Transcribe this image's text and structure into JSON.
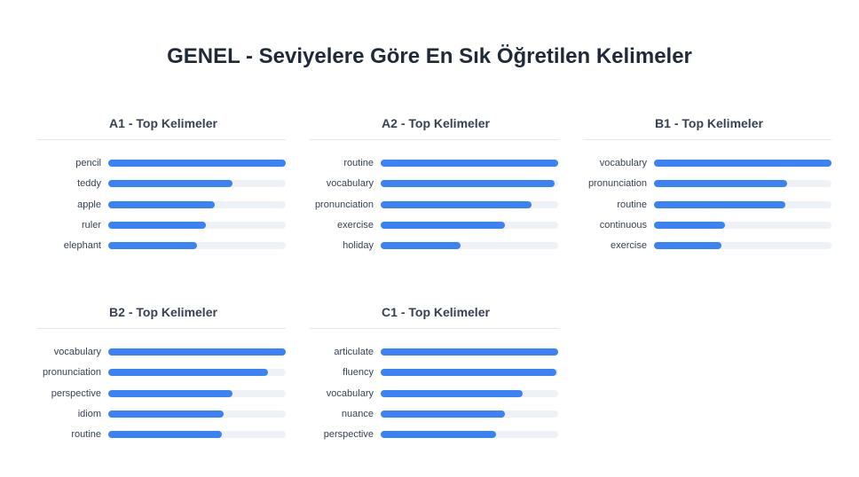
{
  "title": "GENEL - Seviyelere Göre En Sık Öğretilen Kelimeler",
  "colors": {
    "bar": "#3b82f6",
    "track": "#eef2f7"
  },
  "chart_data": [
    {
      "type": "bar",
      "orientation": "horizontal",
      "title": "A1 - Top Kelimeler",
      "categories": [
        "pencil",
        "teddy",
        "apple",
        "ruler",
        "elephant"
      ],
      "values": [
        1.0,
        0.7,
        0.6,
        0.55,
        0.5
      ],
      "xlim": [
        0,
        1
      ]
    },
    {
      "type": "bar",
      "orientation": "horizontal",
      "title": "A2 - Top Kelimeler",
      "categories": [
        "routine",
        "vocabulary",
        "pronunciation",
        "exercise",
        "holiday"
      ],
      "values": [
        1.0,
        0.98,
        0.85,
        0.7,
        0.45
      ],
      "xlim": [
        0,
        1
      ]
    },
    {
      "type": "bar",
      "orientation": "horizontal",
      "title": "B1 - Top Kelimeler",
      "categories": [
        "vocabulary",
        "pronunciation",
        "routine",
        "continuous",
        "exercise"
      ],
      "values": [
        1.0,
        0.75,
        0.74,
        0.4,
        0.38
      ],
      "xlim": [
        0,
        1
      ]
    },
    {
      "type": "bar",
      "orientation": "horizontal",
      "title": "B2 - Top Kelimeler",
      "categories": [
        "vocabulary",
        "pronunciation",
        "perspective",
        "idiom",
        "routine"
      ],
      "values": [
        1.0,
        0.9,
        0.7,
        0.65,
        0.64
      ],
      "xlim": [
        0,
        1
      ]
    },
    {
      "type": "bar",
      "orientation": "horizontal",
      "title": "C1 - Top Kelimeler",
      "categories": [
        "articulate",
        "fluency",
        "vocabulary",
        "nuance",
        "perspective"
      ],
      "values": [
        1.0,
        0.99,
        0.8,
        0.7,
        0.65
      ],
      "xlim": [
        0,
        1
      ]
    }
  ]
}
